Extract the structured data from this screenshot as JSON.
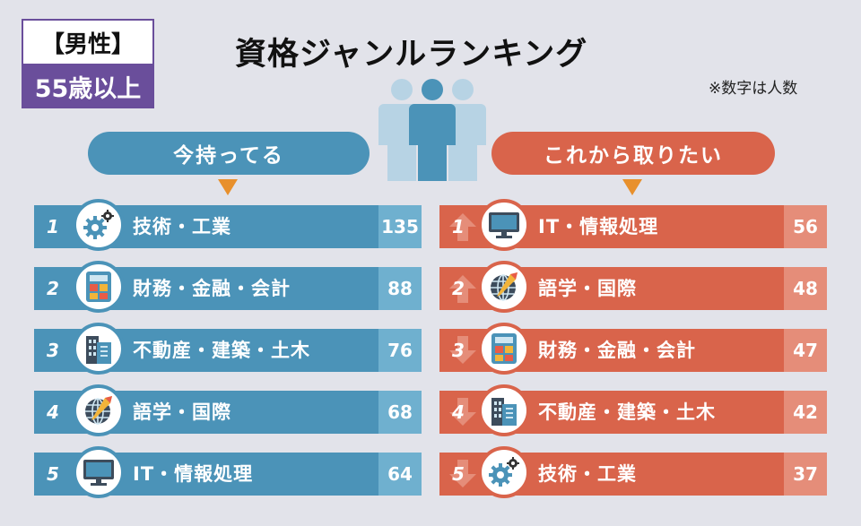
{
  "tag": {
    "gender": "【男性】",
    "age": "55歳以上"
  },
  "title": "資格ジャンルランキング",
  "note": "※数字は人数",
  "left": {
    "heading": "今持ってる",
    "rows": [
      {
        "rank": "1",
        "label": "技術・工業",
        "value": "135",
        "icon": "gear-icon"
      },
      {
        "rank": "2",
        "label": "財務・金融・会計",
        "value": "88",
        "icon": "calculator-icon"
      },
      {
        "rank": "3",
        "label": "不動産・建築・土木",
        "value": "76",
        "icon": "building-icon"
      },
      {
        "rank": "4",
        "label": "語学・国際",
        "value": "68",
        "icon": "globe-icon"
      },
      {
        "rank": "5",
        "label": "IT・情報処理",
        "value": "64",
        "icon": "monitor-icon"
      }
    ]
  },
  "right": {
    "heading": "これから取りたい",
    "rows": [
      {
        "rank": "1",
        "label": "IT・情報処理",
        "value": "56",
        "icon": "monitor-icon",
        "trend": "up"
      },
      {
        "rank": "2",
        "label": "語学・国際",
        "value": "48",
        "icon": "globe-icon",
        "trend": "up"
      },
      {
        "rank": "3",
        "label": "財務・金融・会計",
        "value": "47",
        "icon": "calculator-icon",
        "trend": "down"
      },
      {
        "rank": "4",
        "label": "不動産・建築・土木",
        "value": "42",
        "icon": "building-icon",
        "trend": "down"
      },
      {
        "rank": "5",
        "label": "技術・工業",
        "value": "37",
        "icon": "gear-icon",
        "trend": "down"
      }
    ]
  },
  "colors": {
    "blue": "#4b93b8",
    "blue_light": "#6fb0cf",
    "red": "#d9644b",
    "red_light": "#e58d79",
    "purple": "#6a4e9b",
    "orange": "#e8902c",
    "background": "#e2e3ea"
  }
}
